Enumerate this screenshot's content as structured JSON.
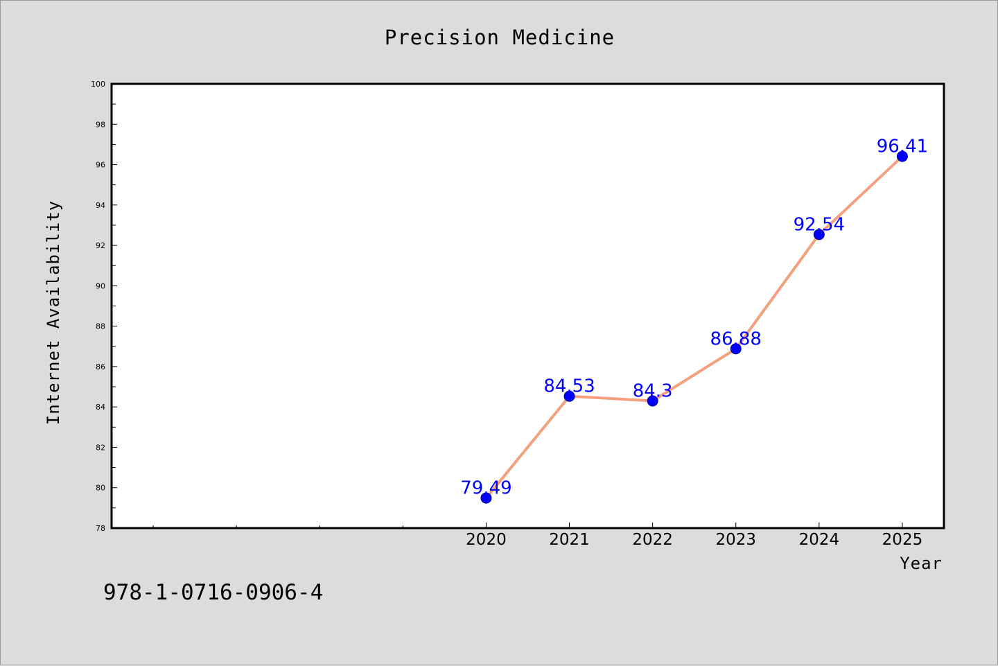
{
  "chart_data": {
    "type": "line",
    "title": "Precision Medicine",
    "xlabel": "Year",
    "ylabel": "Internet Availability",
    "x": [
      2020,
      2021,
      2022,
      2023,
      2024,
      2025
    ],
    "series": [
      {
        "values": [
          79.49,
          84.53,
          84.3,
          86.88,
          92.54,
          96.41
        ]
      }
    ],
    "data_labels": [
      "79.49",
      "84.53",
      "84.3",
      "86.88",
      "92.54",
      "96.41"
    ],
    "ylim": [
      78,
      100
    ],
    "yticks": [
      78,
      80,
      82,
      84,
      86,
      88,
      90,
      92,
      94,
      96,
      98,
      100
    ],
    "xlim": [
      2015.5,
      2025.5
    ],
    "grid": false,
    "legend": "none",
    "colors": {
      "line": "#f4a07f",
      "marker": "#0000ff",
      "label": "#0000ff",
      "plot_bg": "#ffffff",
      "page_bg": "#dcdcdc"
    }
  },
  "footer": {
    "isbn": "978-1-0716-0906-4"
  }
}
